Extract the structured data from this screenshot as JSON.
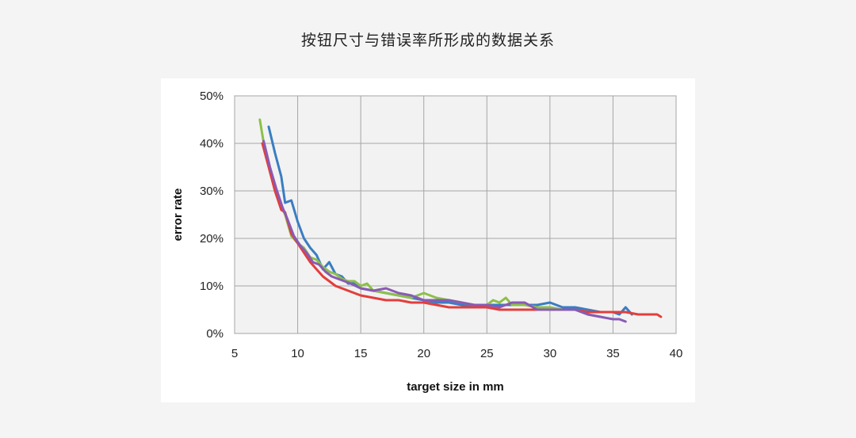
{
  "page": {
    "title": "按钮尺寸与错误率所形成的数据关系"
  },
  "chart_data": {
    "type": "line",
    "title": "",
    "xlabel": "target size in mm",
    "ylabel": "error rate",
    "xlim": [
      5,
      40
    ],
    "ylim": [
      0,
      50
    ],
    "xticks": [
      "5",
      "10",
      "15",
      "20",
      "25",
      "30",
      "35",
      "40"
    ],
    "yticks": [
      "0%",
      "10%",
      "20%",
      "30%",
      "40%",
      "50%"
    ],
    "grid": true,
    "plot_background": "#f2f2f2",
    "series": [
      {
        "color": "#3a7dc3",
        "x": [
          7.7,
          8.2,
          8.7,
          9.0,
          9.5,
          10.0,
          10.5,
          11.0,
          11.5,
          12.0,
          12.5,
          13.0,
          13.5,
          14.0,
          14.5,
          15.0,
          16.0,
          17.0,
          18.0,
          19.0,
          20.0,
          21.0,
          22.0,
          23.0,
          24.0,
          25.0,
          26.0,
          27.0,
          28.0,
          29.0,
          30.0,
          31.0,
          32.0,
          33.0,
          34.0,
          35.0,
          35.5,
          36.0,
          36.5
        ],
        "y": [
          43.5,
          38,
          33,
          27.5,
          28,
          23.5,
          20,
          18,
          16.5,
          13.5,
          15,
          12.5,
          12,
          10.5,
          10.5,
          9.5,
          9,
          8.5,
          8,
          7.5,
          7,
          6.5,
          6.5,
          6,
          6,
          6,
          6,
          6,
          6,
          6,
          6.5,
          5.5,
          5.5,
          5,
          4.5,
          4.5,
          4,
          5.5,
          4
        ]
      },
      {
        "color": "#8cc04a",
        "x": [
          7.0,
          7.5,
          8.0,
          8.5,
          9.0,
          9.5,
          10.0,
          10.5,
          11.0,
          11.5,
          12.0,
          12.5,
          13.0,
          13.5,
          14.0,
          14.5,
          15.0,
          15.5,
          16.0,
          17.0,
          18.0,
          19.0,
          20.0,
          20.5,
          21.0,
          22.0,
          23.0,
          24.0,
          25.0,
          25.5,
          26.0,
          26.5,
          27.0,
          28.0,
          29.0,
          30.0,
          31.0,
          32.0,
          33.0,
          34.0
        ],
        "y": [
          45,
          37,
          33,
          28,
          25,
          20.5,
          19,
          18,
          16,
          15.5,
          14,
          13,
          12.5,
          11.5,
          11,
          11,
          10,
          10.5,
          9,
          8.5,
          8,
          7.5,
          8.5,
          8,
          7.5,
          7,
          6.5,
          6,
          6,
          7,
          6.5,
          7.5,
          6,
          6,
          5.5,
          5.5,
          5,
          5,
          4,
          3.5
        ]
      },
      {
        "color": "#e23e3c",
        "x": [
          7.2,
          7.7,
          8.2,
          8.7,
          9.0,
          9.5,
          10.0,
          10.5,
          11.0,
          11.5,
          12.0,
          12.5,
          13.0,
          13.5,
          14.0,
          15.0,
          16.0,
          17.0,
          18.0,
          19.0,
          20.0,
          21.0,
          22.0,
          23.0,
          24.0,
          25.0,
          26.0,
          27.0,
          28.0,
          29.0,
          30.0,
          31.0,
          32.0,
          33.0,
          34.0,
          35.0,
          36.0,
          37.0,
          37.5,
          38.0,
          38.5,
          38.8
        ],
        "y": [
          40,
          35,
          30,
          26,
          25.5,
          21,
          19,
          17,
          15,
          13.5,
          12,
          11,
          10,
          9.5,
          9,
          8,
          7.5,
          7,
          7,
          6.5,
          6.5,
          6,
          5.5,
          5.5,
          5.5,
          5.5,
          5,
          5,
          5,
          5,
          5,
          5,
          5,
          4.5,
          4.5,
          4.5,
          4.5,
          4,
          4,
          4,
          4,
          3.5
        ]
      },
      {
        "color": "#8a5ab4",
        "x": [
          7.3,
          7.8,
          8.3,
          8.8,
          9.2,
          9.7,
          10.2,
          10.7,
          11.2,
          11.7,
          12.2,
          12.7,
          13.2,
          13.7,
          14.2,
          15.0,
          16.0,
          17.0,
          18.0,
          19.0,
          20.0,
          21.0,
          22.0,
          23.0,
          24.0,
          25.0,
          26.0,
          27.0,
          28.0,
          29.0,
          30.0,
          31.0,
          32.0,
          33.0,
          34.0,
          35.0,
          35.5,
          36.0
        ],
        "y": [
          40.5,
          35,
          30.5,
          26.5,
          24,
          20.5,
          18.5,
          17,
          15,
          14.5,
          13,
          12,
          11.5,
          11,
          10.5,
          9.5,
          9,
          9.5,
          8.5,
          8,
          7,
          7,
          7,
          6.5,
          6,
          6,
          5.5,
          6.5,
          6.5,
          5,
          5,
          5,
          5,
          4,
          3.5,
          3,
          3,
          2.5
        ]
      }
    ]
  }
}
